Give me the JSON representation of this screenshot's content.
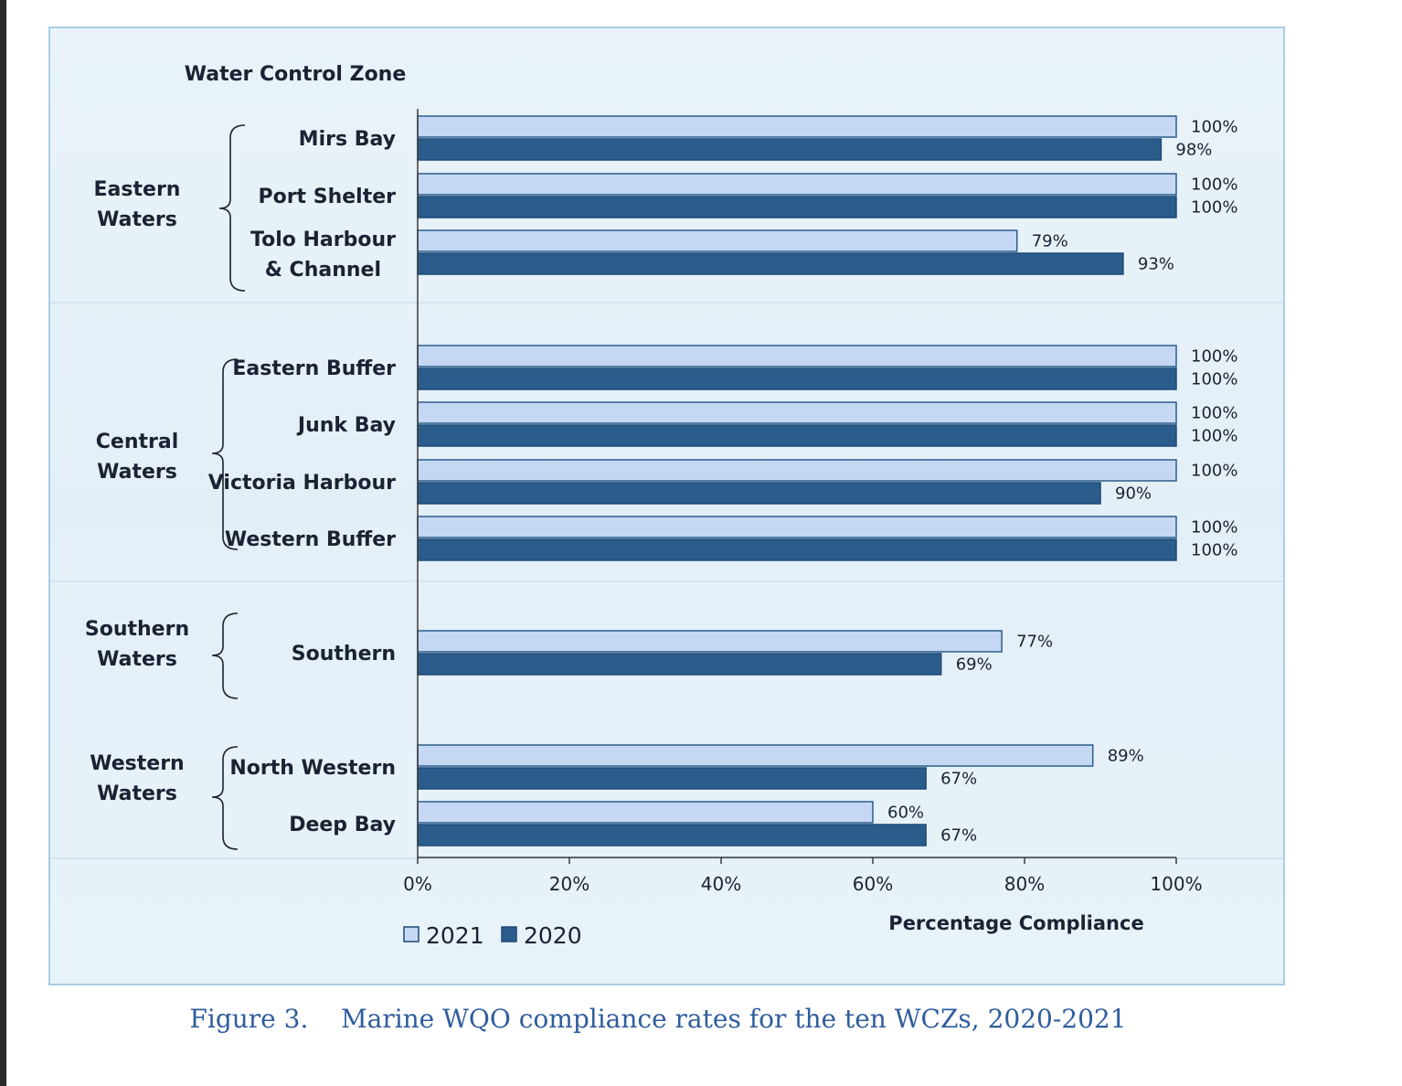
{
  "chart_data": {
    "type": "bar",
    "orientation": "horizontal",
    "header": "Water Control Zone",
    "xlabel": "Percentage Compliance",
    "xlim": [
      0,
      100
    ],
    "x_ticks": [
      "0%",
      "20%",
      "40%",
      "60%",
      "80%",
      "100%"
    ],
    "groups": [
      {
        "label_lines": [
          "Eastern",
          "Waters"
        ],
        "zones": [
          "Mirs Bay",
          "Port Shelter",
          "Tolo Harbour & Channel"
        ]
      },
      {
        "label_lines": [
          "Central",
          "Waters"
        ],
        "zones": [
          "Eastern Buffer",
          "Junk Bay",
          "Victoria Harbour",
          "Western Buffer"
        ]
      },
      {
        "label_lines": [
          "Southern",
          "Waters"
        ],
        "zones": [
          "Southern"
        ]
      },
      {
        "label_lines": [
          "Western",
          "Waters"
        ],
        "zones": [
          "North Western",
          "Deep Bay"
        ]
      }
    ],
    "categories": [
      "Mirs Bay",
      "Port Shelter",
      "Tolo Harbour & Channel",
      "Eastern Buffer",
      "Junk Bay",
      "Victoria Harbour",
      "Western Buffer",
      "Southern",
      "North Western",
      "Deep Bay"
    ],
    "category_label_lines": [
      [
        "Mirs Bay"
      ],
      [
        "Port Shelter"
      ],
      [
        "Tolo Harbour",
        "& Channel"
      ],
      [
        "Eastern Buffer"
      ],
      [
        "Junk Bay"
      ],
      [
        "Victoria Harbour"
      ],
      [
        "Western Buffer"
      ],
      [
        "Southern"
      ],
      [
        "North Western"
      ],
      [
        "Deep Bay"
      ]
    ],
    "series": [
      {
        "name": "2021",
        "color": "#c5d8f3",
        "values": [
          100,
          100,
          79,
          100,
          100,
          100,
          100,
          77,
          89,
          60
        ],
        "labels": [
          "100%",
          "100%",
          "79%",
          "100%",
          "100%",
          "100%",
          "100%",
          "77%",
          "89%",
          "60%"
        ]
      },
      {
        "name": "2020",
        "color": "#2a5c8c",
        "values": [
          98,
          100,
          93,
          100,
          100,
          90,
          100,
          69,
          67,
          67
        ],
        "labels": [
          "98%",
          "100%",
          "93%",
          "100%",
          "100%",
          "90%",
          "100%",
          "69%",
          "67%",
          "67%"
        ]
      }
    ],
    "legend": {
      "position": "bottom-left",
      "labels": [
        "2021",
        "2020"
      ]
    },
    "grid": false
  },
  "caption": "Figure 3.    Marine WQO compliance rates for the ten WCZs, 2020-2021"
}
